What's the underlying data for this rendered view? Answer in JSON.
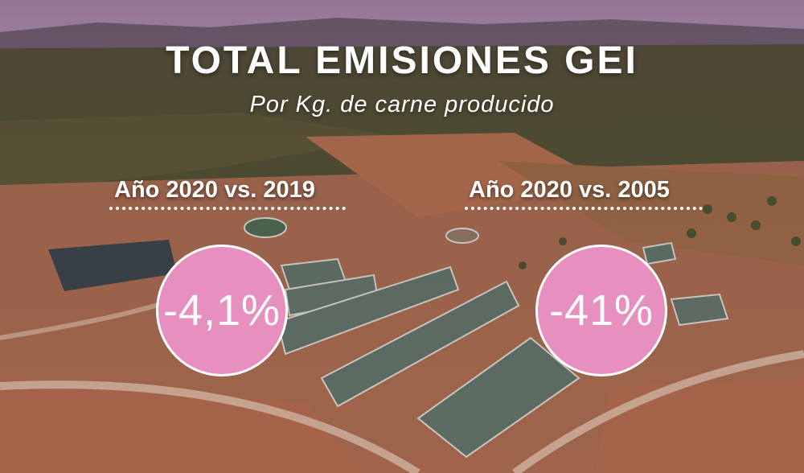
{
  "title": "TOTAL EMISIONES GEI",
  "subtitle": "Por Kg. de carne producido",
  "comparisons": [
    {
      "label": "Año 2020 vs. 2019",
      "value": "-4,1%"
    },
    {
      "label": "Año 2020 vs. 2005",
      "value": "-41%"
    }
  ],
  "colors": {
    "circle": "#e78fbf",
    "text": "#ffffff"
  }
}
